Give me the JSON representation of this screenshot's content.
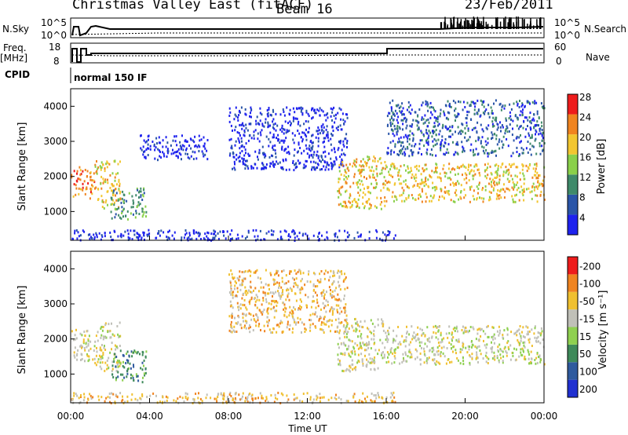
{
  "header": {
    "title": "Christmas Valley East (fitACF)",
    "beam": "Beam 16",
    "date": "23/Feb/2011"
  },
  "params": {
    "nsky_label": "N.Sky",
    "nsearch_label": "N.Search",
    "nsky_tick_top": "10^5",
    "nsky_tick_bottom": "10^0",
    "nsearch_tick_top": "10^5",
    "nsearch_tick_bottom": "10^0",
    "freq_label": "Freq.",
    "freq_unit": "[MHz]",
    "freq_tick_top": "18",
    "freq_tick_bottom": "8",
    "nave_label": "Nave",
    "nave_tick_top": "60",
    "nave_tick_bottom": "0",
    "cpid_label": "CPID",
    "cpid_value": "normal 150 IF"
  },
  "chart_data": [
    {
      "type": "heatmap",
      "name": "power",
      "ylabel": "Slant Range [km]",
      "colorbar_label": "Power [dB]",
      "yticks": [
        1000,
        2000,
        3000,
        4000
      ],
      "ylim": [
        180,
        4500
      ],
      "xlim": [
        0,
        24
      ],
      "color_levels": [
        4,
        8,
        12,
        16,
        20,
        24,
        28
      ],
      "colors": [
        "#1e22ee",
        "#2a55a8",
        "#3f8a6a",
        "#8ad04a",
        "#f2c630",
        "#f08420",
        "#ee1c1c"
      ],
      "echo_regions": [
        {
          "t0": 0.0,
          "t1": 1.2,
          "r0": 1400,
          "r1": 2300,
          "level": 24
        },
        {
          "t0": 1.2,
          "t1": 2.5,
          "r0": 1100,
          "r1": 2500,
          "level": 20
        },
        {
          "t0": 2.0,
          "t1": 3.8,
          "r0": 800,
          "r1": 1700,
          "level": 12
        },
        {
          "t0": 3.5,
          "t1": 7.0,
          "r0": 2500,
          "r1": 3200,
          "level": 4
        },
        {
          "t0": 8.0,
          "t1": 14.0,
          "r0": 2200,
          "r1": 4000,
          "level": 4
        },
        {
          "t0": 13.5,
          "t1": 16.0,
          "r0": 1100,
          "r1": 2600,
          "level": 20
        },
        {
          "t0": 16.0,
          "t1": 24.0,
          "r0": 1300,
          "r1": 2400,
          "level": 20
        },
        {
          "t0": 16.0,
          "t1": 24.0,
          "r0": 2600,
          "r1": 4200,
          "level": 8
        },
        {
          "t0": 0.0,
          "t1": 16.5,
          "r0": 200,
          "r1": 500,
          "level": 4
        }
      ]
    },
    {
      "type": "heatmap",
      "name": "velocity",
      "ylabel": "Slant Range [km]",
      "colorbar_label": "Velocity [m s⁻¹]",
      "yticks": [
        1000,
        2000,
        3000,
        4000
      ],
      "ylim": [
        180,
        4500
      ],
      "xlim": [
        0,
        24
      ],
      "color_levels": [
        200,
        100,
        50,
        15,
        -15,
        -50,
        -100,
        -200
      ],
      "colors": [
        "#2030d0",
        "#2f5a9e",
        "#3f8a5a",
        "#8fd050",
        "#c0c0b8",
        "#f0c030",
        "#f08420",
        "#ee1c1c"
      ],
      "echo_regions": [
        {
          "t0": 0.0,
          "t1": 1.2,
          "r0": 1400,
          "r1": 2300,
          "level": -15
        },
        {
          "t0": 1.2,
          "t1": 2.5,
          "r0": 1100,
          "r1": 2500,
          "level": -15
        },
        {
          "t0": 2.0,
          "t1": 3.8,
          "r0": 800,
          "r1": 1700,
          "level": 50
        },
        {
          "t0": 8.0,
          "t1": 14.0,
          "r0": 2200,
          "r1": 4000,
          "level": -50
        },
        {
          "t0": 13.5,
          "t1": 16.0,
          "r0": 1100,
          "r1": 2600,
          "level": -15
        },
        {
          "t0": 16.0,
          "t1": 24.0,
          "r0": 1300,
          "r1": 2400,
          "level": -15
        },
        {
          "t0": 0.0,
          "t1": 16.5,
          "r0": 200,
          "r1": 500,
          "level": -50
        }
      ]
    }
  ],
  "xaxis": {
    "label": "Time UT",
    "ticks": [
      "00:00",
      "04:00",
      "08:00",
      "12:00",
      "16:00",
      "20:00",
      "00:00"
    ]
  }
}
